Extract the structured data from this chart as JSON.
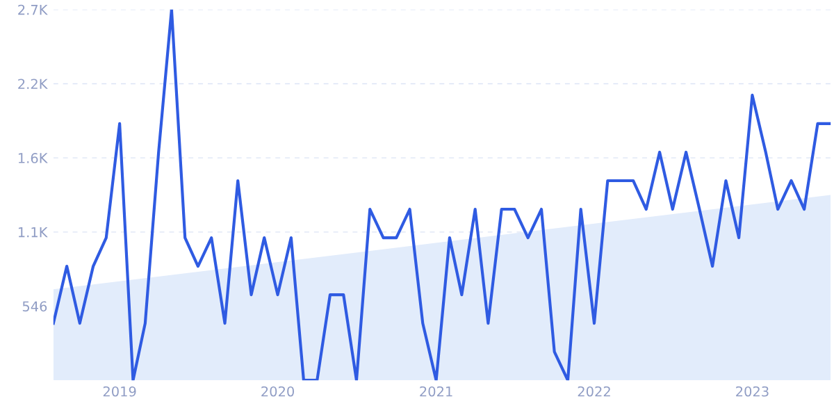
{
  "chart_data": {
    "type": "line",
    "x": [
      "2018-08",
      "2018-09",
      "2018-10",
      "2018-11",
      "2018-12",
      "2019-01",
      "2019-02",
      "2019-03",
      "2019-04",
      "2019-05",
      "2019-06",
      "2019-07",
      "2019-08",
      "2019-09",
      "2019-10",
      "2019-11",
      "2019-12",
      "2020-01",
      "2020-02",
      "2020-03",
      "2020-04",
      "2020-05",
      "2020-06",
      "2020-07",
      "2020-08",
      "2020-09",
      "2020-10",
      "2020-11",
      "2020-12",
      "2021-01",
      "2021-02",
      "2021-03",
      "2021-04",
      "2021-05",
      "2021-06",
      "2021-07",
      "2021-08",
      "2021-09",
      "2021-10",
      "2021-11",
      "2021-12",
      "2022-01",
      "2022-02",
      "2022-03",
      "2022-04",
      "2022-05",
      "2022-06",
      "2022-07",
      "2022-08",
      "2022-09",
      "2022-10",
      "2022-11",
      "2022-12",
      "2023-01",
      "2023-02",
      "2023-03",
      "2023-04",
      "2023-05",
      "2023-06",
      "2023-07"
    ],
    "series": [
      {
        "type": "area",
        "color": "#e2ecfb",
        "x": [
          "2018-08",
          "2023-07"
        ],
        "values": [
          670,
          1365
        ]
      },
      {
        "color": "#2f5be2",
        "values": [
          420,
          840,
          420,
          840,
          1050,
          1890,
          0,
          420,
          1680,
          2730,
          1050,
          840,
          1050,
          420,
          1470,
          630,
          1050,
          630,
          1050,
          0,
          0,
          630,
          630,
          0,
          1260,
          1050,
          1050,
          1260,
          420,
          0,
          1050,
          630,
          1260,
          420,
          1260,
          1260,
          1050,
          1260,
          210,
          0,
          1260,
          420,
          1470,
          1470,
          1470,
          1260,
          1680,
          1260,
          1680,
          1260,
          840,
          1470,
          1050,
          2100,
          1680,
          1260,
          1470,
          1260,
          1890,
          1890
        ]
      }
    ],
    "xlim": [
      "2018-08",
      "2023-07"
    ],
    "xticks": [
      "2019",
      "2020",
      "2021",
      "2022",
      "2023"
    ],
    "ylim": [
      0,
      2730
    ],
    "yticks": [
      {
        "value": 546,
        "label": "546"
      },
      {
        "value": 1092,
        "label": "1.1K"
      },
      {
        "value": 1638,
        "label": "1.6K"
      },
      {
        "value": 2184,
        "label": "2.2K"
      },
      {
        "value": 2730,
        "label": "2.7K"
      }
    ],
    "grid": "y",
    "marker": "none",
    "line_style": "solid"
  }
}
